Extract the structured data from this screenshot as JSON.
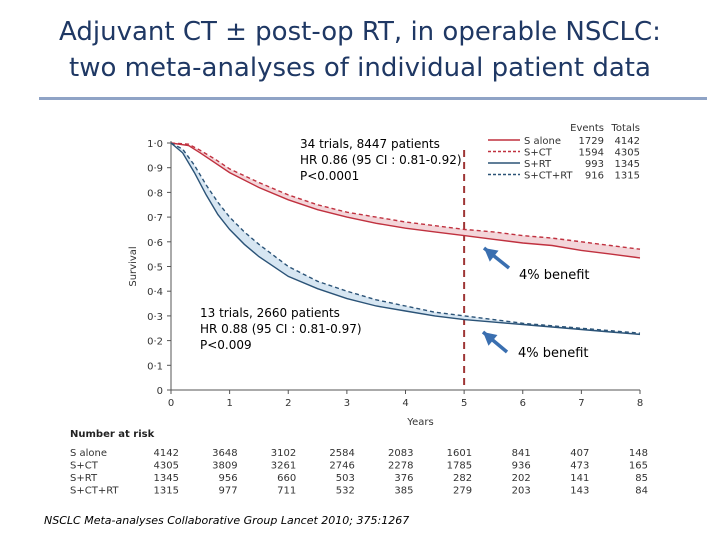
{
  "title_line1": "Adjuvant CT ± post-op RT, in operable NSCLC:",
  "title_line2": "two meta-analyses of individual patient data",
  "citation": "NSCLC Meta-analyses Collaborative Group Lancet 2010; 375:1267",
  "colors": {
    "title": "#1f3864",
    "red_series": "#c0313f",
    "blue_series": "#2b5377",
    "arrow": "#3a6fb0",
    "dashed_line": "#9e3535"
  },
  "annotations": {
    "ct_meta": [
      "34 trials, 8447 patients",
      "HR 0.86 (95 CI : 0.81-0.92)",
      "P<0.0001"
    ],
    "rt_meta": [
      "13 trials, 2660 patients",
      "HR 0.88 (95 CI : 0.81-0.97)",
      "P<0.009"
    ],
    "benefit_upper": "4% benefit",
    "benefit_lower": "4% benefit"
  },
  "chart_data": {
    "type": "line",
    "xlabel": "Years",
    "ylabel": "Survival",
    "xlim": [
      0,
      8
    ],
    "ylim": [
      0,
      1.0
    ],
    "x_ticks": [
      "0",
      "1",
      "2",
      "3",
      "4",
      "5",
      "6",
      "7",
      "8"
    ],
    "y_ticks": [
      "0",
      "0·1",
      "0·2",
      "0·3",
      "0·4",
      "0·5",
      "0·6",
      "0·7",
      "0·8",
      "0·9",
      "1·0"
    ],
    "reference_line_x": 5,
    "legend": {
      "placement": "top-right",
      "col_events": "Events",
      "col_totals": "Totals",
      "entries": [
        {
          "name": "S alone",
          "events": "1729",
          "totals": "4142",
          "color": "#c0313f",
          "dash": "solid"
        },
        {
          "name": "S+CT",
          "events": "1594",
          "totals": "4305",
          "color": "#c0313f",
          "dash": "dashed"
        },
        {
          "name": "S+RT",
          "events": "993",
          "totals": "1345",
          "color": "#2b5377",
          "dash": "solid"
        },
        {
          "name": "S+CT+RT",
          "events": "916",
          "totals": "1315",
          "color": "#2b5377",
          "dash": "dashed"
        }
      ]
    },
    "series": [
      {
        "name": "S alone",
        "color": "#c0313f",
        "dash": "solid",
        "x": [
          0,
          0.3,
          0.5,
          0.75,
          1,
          1.5,
          2,
          2.5,
          3,
          3.5,
          4,
          4.5,
          5,
          5.5,
          6,
          6.5,
          7,
          7.5,
          8
        ],
        "y": [
          1.0,
          0.99,
          0.96,
          0.92,
          0.88,
          0.82,
          0.77,
          0.73,
          0.7,
          0.675,
          0.655,
          0.64,
          0.625,
          0.61,
          0.595,
          0.585,
          0.565,
          0.55,
          0.535
        ]
      },
      {
        "name": "S+CT",
        "color": "#c0313f",
        "dash": "dashed",
        "x": [
          0,
          0.3,
          0.5,
          0.75,
          1,
          1.5,
          2,
          2.5,
          3,
          3.5,
          4,
          4.5,
          5,
          5.5,
          6,
          6.5,
          7,
          7.5,
          8
        ],
        "y": [
          1.0,
          0.995,
          0.97,
          0.935,
          0.895,
          0.84,
          0.79,
          0.75,
          0.72,
          0.7,
          0.68,
          0.665,
          0.65,
          0.64,
          0.625,
          0.615,
          0.6,
          0.585,
          0.57
        ]
      },
      {
        "name": "S+RT",
        "color": "#2b5377",
        "dash": "solid",
        "x": [
          0,
          0.2,
          0.4,
          0.6,
          0.8,
          1,
          1.25,
          1.5,
          2,
          2.5,
          3,
          3.5,
          4,
          4.5,
          5,
          5.5,
          6,
          6.5,
          7,
          7.5,
          8
        ],
        "y": [
          1.0,
          0.96,
          0.88,
          0.79,
          0.71,
          0.65,
          0.59,
          0.54,
          0.46,
          0.41,
          0.37,
          0.34,
          0.32,
          0.3,
          0.285,
          0.275,
          0.265,
          0.255,
          0.245,
          0.235,
          0.225
        ]
      },
      {
        "name": "S+CT+RT",
        "color": "#2b5377",
        "dash": "dashed",
        "x": [
          0,
          0.2,
          0.4,
          0.6,
          0.8,
          1,
          1.25,
          1.5,
          2,
          2.5,
          3,
          3.5,
          4,
          4.5,
          5,
          5.5,
          6,
          6.5,
          7,
          7.5,
          8
        ],
        "y": [
          1.0,
          0.975,
          0.91,
          0.83,
          0.76,
          0.7,
          0.64,
          0.59,
          0.5,
          0.44,
          0.4,
          0.365,
          0.34,
          0.315,
          0.3,
          0.285,
          0.27,
          0.26,
          0.25,
          0.24,
          0.23
        ]
      }
    ],
    "number_at_risk": {
      "header": "Number at risk",
      "rows": [
        {
          "name": "S alone",
          "values": [
            "4142",
            "3648",
            "3102",
            "2584",
            "2083",
            "1601",
            "841",
            "407",
            "148"
          ]
        },
        {
          "name": "S+CT",
          "values": [
            "4305",
            "3809",
            "3261",
            "2746",
            "2278",
            "1785",
            "936",
            "473",
            "165"
          ]
        },
        {
          "name": "S+RT",
          "values": [
            "1345",
            "956",
            "660",
            "503",
            "376",
            "282",
            "202",
            "141",
            "85"
          ]
        },
        {
          "name": "S+CT+RT",
          "values": [
            "1315",
            "977",
            "711",
            "532",
            "385",
            "279",
            "203",
            "143",
            "84"
          ]
        }
      ]
    }
  }
}
